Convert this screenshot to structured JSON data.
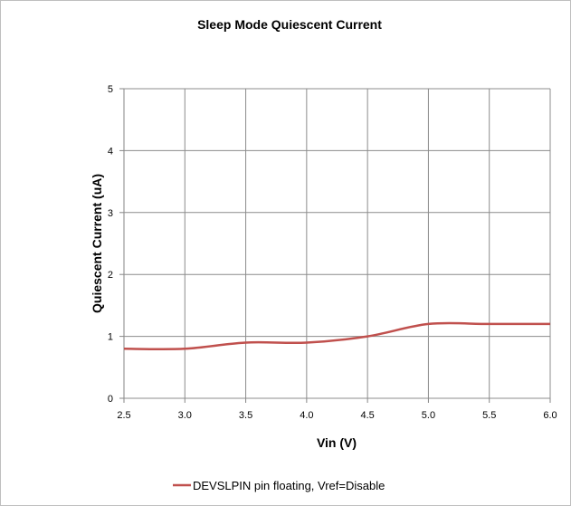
{
  "chart_data": {
    "type": "line",
    "title": "Sleep Mode Quiescent Current",
    "xlabel": "Vin (V)",
    "ylabel": "Quiescent Current (uA)",
    "xlim": [
      2.5,
      6.0
    ],
    "ylim": [
      0,
      5
    ],
    "x_ticks": [
      "2.5",
      "3.0",
      "3.5",
      "4.0",
      "4.5",
      "5.0",
      "5.5",
      "6.0"
    ],
    "y_ticks": [
      "0",
      "1",
      "2",
      "3",
      "4",
      "5"
    ],
    "grid": true,
    "legend_position": "bottom",
    "series": [
      {
        "name": "DEVSLPIN pin floating, Vref=Disable",
        "color": "#c0504d",
        "x": [
          2.5,
          3.0,
          3.5,
          4.0,
          4.5,
          5.0,
          5.5,
          6.0
        ],
        "y": [
          0.8,
          0.8,
          0.9,
          0.9,
          1.0,
          1.2,
          1.2,
          1.2
        ]
      }
    ]
  }
}
